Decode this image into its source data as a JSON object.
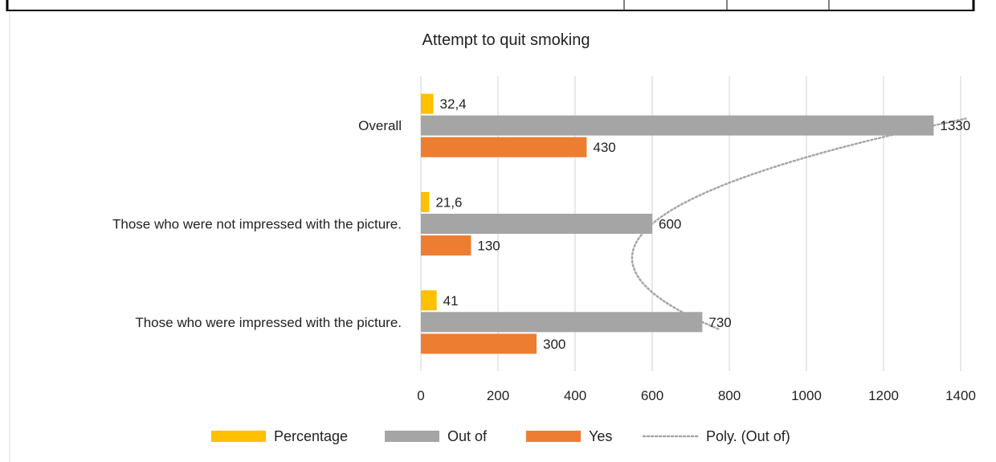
{
  "chart_data": {
    "type": "bar",
    "orientation": "horizontal",
    "title": "Attempt to quit smoking",
    "categories": [
      "Those who were impressed with the picture.",
      "Those who were not impressed with the picture.",
      "Overall"
    ],
    "series": [
      {
        "name": "Percentage",
        "values": [
          41,
          21.6,
          32.4
        ],
        "labels": [
          "41",
          "21,6",
          "32,4"
        ],
        "color": "#FFC000"
      },
      {
        "name": "Out of",
        "values": [
          730,
          600,
          1330
        ],
        "labels": [
          "730",
          "600",
          "1330"
        ],
        "color": "#A5A5A5"
      },
      {
        "name": "Yes",
        "values": [
          300,
          130,
          430
        ],
        "labels": [
          "300",
          "130",
          "430"
        ],
        "color": "#ED7D31"
      }
    ],
    "trendline": {
      "name": "Poly. (Out of)",
      "of_series": "Out of",
      "type": "polynomial",
      "color": "#A5A5A5"
    },
    "xlim": [
      0,
      1400
    ],
    "xticks": [
      "0",
      "200",
      "400",
      "600",
      "800",
      "1000",
      "1200",
      "1400"
    ],
    "grid": true,
    "legend": "bottom"
  }
}
